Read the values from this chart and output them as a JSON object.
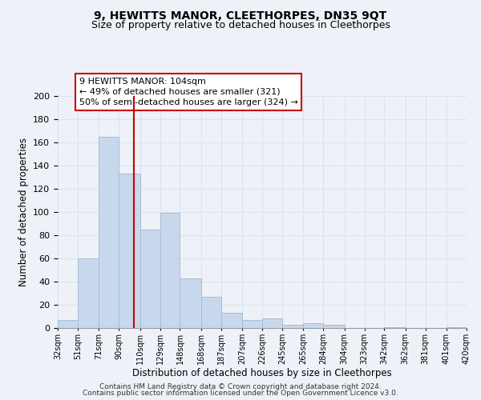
{
  "title": "9, HEWITTS MANOR, CLEETHORPES, DN35 9QT",
  "subtitle": "Size of property relative to detached houses in Cleethorpes",
  "xlabel": "Distribution of detached houses by size in Cleethorpes",
  "ylabel": "Number of detached properties",
  "bar_edges": [
    32,
    51,
    71,
    90,
    110,
    129,
    148,
    168,
    187,
    207,
    226,
    245,
    265,
    284,
    304,
    323,
    342,
    362,
    381,
    401,
    420
  ],
  "bar_heights": [
    7,
    60,
    165,
    133,
    85,
    99,
    43,
    27,
    13,
    7,
    8,
    3,
    4,
    3,
    0,
    0,
    1,
    0,
    0,
    1
  ],
  "bar_color": "#c8d8ec",
  "bar_edge_color": "#a8bcd4",
  "vline_x": 104,
  "vline_color": "#cc0000",
  "annotation_line1": "9 HEWITTS MANOR: 104sqm",
  "annotation_line2": "← 49% of detached houses are smaller (321)",
  "annotation_line3": "50% of semi-detached houses are larger (324) →",
  "ylim": [
    0,
    200
  ],
  "yticks": [
    0,
    20,
    40,
    60,
    80,
    100,
    120,
    140,
    160,
    180,
    200
  ],
  "tick_labels": [
    "32sqm",
    "51sqm",
    "71sqm",
    "90sqm",
    "110sqm",
    "129sqm",
    "148sqm",
    "168sqm",
    "187sqm",
    "207sqm",
    "226sqm",
    "245sqm",
    "265sqm",
    "284sqm",
    "304sqm",
    "323sqm",
    "342sqm",
    "362sqm",
    "381sqm",
    "401sqm",
    "420sqm"
  ],
  "footer_line1": "Contains HM Land Registry data © Crown copyright and database right 2024.",
  "footer_line2": "Contains public sector information licensed under the Open Government Licence v3.0.",
  "grid_color": "#d8e4f0",
  "background_color": "#eef2f8",
  "plot_bg_color": "#eef2f8"
}
